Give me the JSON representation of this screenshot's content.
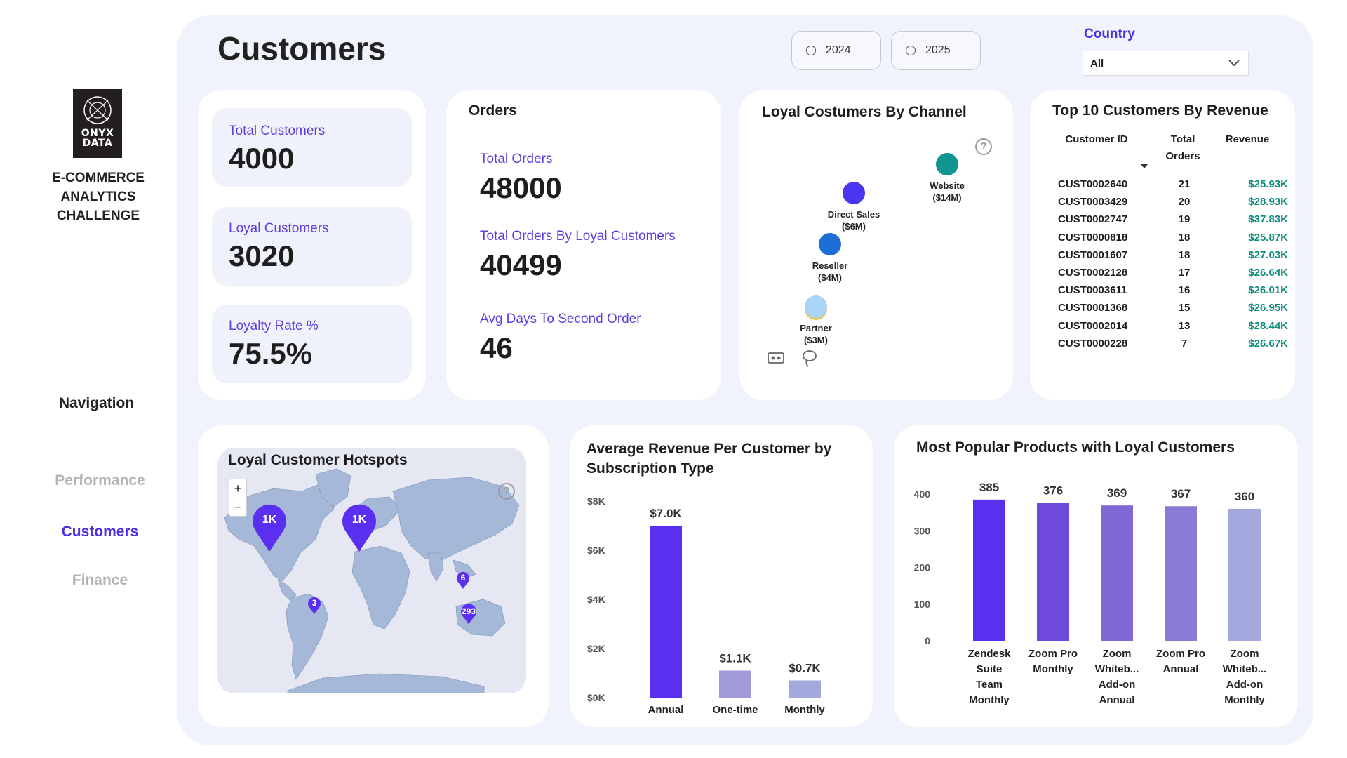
{
  "brand": {
    "logo_text_line1": "ONYX",
    "logo_text_line2": "DATA",
    "tagline_line1": "E-COMMERCE",
    "tagline_line2": "ANALYTICS",
    "tagline_line3": "CHALLENGE"
  },
  "navigation": {
    "title": "Navigation",
    "items": [
      {
        "label": "Performance",
        "active": false
      },
      {
        "label": "Customers",
        "active": true
      },
      {
        "label": "Finance",
        "active": false
      }
    ]
  },
  "header": {
    "title": "Customers",
    "year_options": [
      "2024",
      "2025"
    ],
    "country_label": "Country",
    "country_value": "All"
  },
  "kpis": {
    "total_customers": {
      "label": "Total Customers",
      "value": "4000"
    },
    "loyal_customers": {
      "label": "Loyal Customers",
      "value": "3020"
    },
    "loyalty_rate": {
      "label": "Loyalty Rate %",
      "value": "75.5%"
    }
  },
  "orders": {
    "title": "Orders",
    "total_orders": {
      "label": "Total Orders",
      "value": "48000"
    },
    "loyal_orders": {
      "label": "Total Orders By Loyal Customers",
      "value": "40499"
    },
    "avg_days": {
      "label": "Avg Days To Second Order",
      "value": "46"
    }
  },
  "channel": {
    "title": "Loyal Costumers By Channel",
    "help": "?",
    "points": [
      {
        "name": "Website",
        "value": "($14M)",
        "color": "#109690"
      },
      {
        "name": "Direct Sales",
        "value": "($6M)",
        "color": "#4a35f0"
      },
      {
        "name": "Reseller",
        "value": "($4M)",
        "color": "#1d6fd6"
      },
      {
        "name": "Partner",
        "value": "($3M)",
        "color": "#a9d3f7"
      }
    ]
  },
  "top10": {
    "title": "Top 10 Customers By Revenue",
    "columns": {
      "id": "Customer ID",
      "orders_line1": "Total",
      "orders_line2": "Orders",
      "revenue": "Revenue"
    },
    "rows": [
      {
        "id": "CUST0002640",
        "orders": "21",
        "revenue": "$25.93K"
      },
      {
        "id": "CUST0003429",
        "orders": "20",
        "revenue": "$28.93K"
      },
      {
        "id": "CUST0002747",
        "orders": "19",
        "revenue": "$37.83K"
      },
      {
        "id": "CUST0000818",
        "orders": "18",
        "revenue": "$25.87K"
      },
      {
        "id": "CUST0001607",
        "orders": "18",
        "revenue": "$27.03K"
      },
      {
        "id": "CUST0002128",
        "orders": "17",
        "revenue": "$26.64K"
      },
      {
        "id": "CUST0003611",
        "orders": "16",
        "revenue": "$26.01K"
      },
      {
        "id": "CUST0001368",
        "orders": "15",
        "revenue": "$26.95K"
      },
      {
        "id": "CUST0002014",
        "orders": "13",
        "revenue": "$28.44K"
      },
      {
        "id": "CUST0000228",
        "orders": "7",
        "revenue": "$26.67K"
      }
    ]
  },
  "hotspots": {
    "title": "Loyal Customer Hotspots",
    "help": "?",
    "zoom_in": "+",
    "zoom_out": "−",
    "markers": [
      {
        "label": "1K",
        "size": "large"
      },
      {
        "label": "1K",
        "size": "large"
      },
      {
        "label": "6",
        "size": "small"
      },
      {
        "label": "3",
        "size": "small"
      },
      {
        "label": "293",
        "size": "small"
      }
    ]
  },
  "chart_data": [
    {
      "type": "bar",
      "title": "Average Revenue Per Customer by Subscription Type",
      "categories": [
        "Annual",
        "One-time",
        "Monthly"
      ],
      "values": [
        7000,
        1100,
        700
      ],
      "data_labels": [
        "$7.0K",
        "$1.1K",
        "$0.7K"
      ],
      "colors": [
        "#5b2ff0",
        "#a09ad8",
        "#a4a9dd"
      ],
      "y_ticks": [
        "$0K",
        "$2K",
        "$4K",
        "$6K",
        "$8K"
      ],
      "ylim": [
        0,
        8000
      ]
    },
    {
      "type": "bar",
      "title": "Most Popular Products with Loyal Customers",
      "categories": [
        [
          "Zendesk",
          "Suite",
          "Team",
          "Monthly"
        ],
        [
          "Zoom Pro",
          "Monthly"
        ],
        [
          "Zoom",
          "Whiteb...",
          "Add-on",
          "Annual"
        ],
        [
          "Zoom Pro",
          "Annual"
        ],
        [
          "Zoom",
          "Whiteb...",
          "Add-on",
          "Monthly"
        ]
      ],
      "values": [
        385,
        376,
        369,
        367,
        360
      ],
      "data_labels": [
        "385",
        "376",
        "369",
        "367",
        "360"
      ],
      "colors": [
        "#5a2ff0",
        "#6f48dc",
        "#8068d4",
        "#8b7bd6",
        "#a4a9dd"
      ],
      "y_ticks": [
        "0",
        "100",
        "200",
        "300",
        "400"
      ],
      "ylim": [
        0,
        400
      ]
    }
  ]
}
